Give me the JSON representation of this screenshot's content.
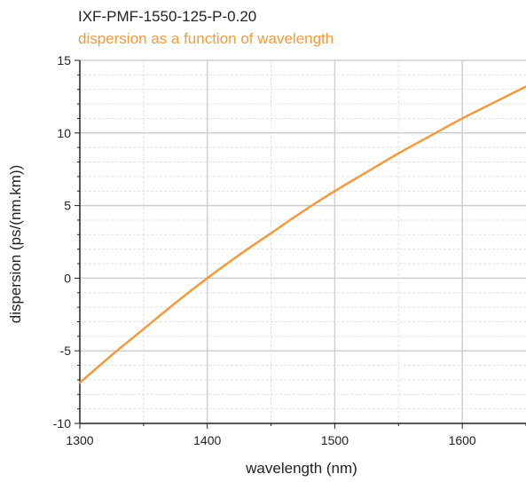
{
  "chart_data": {
    "type": "line",
    "title": "IXF-PMF-1550-125-P-0.20",
    "subtitle": "dispersion as a function of wavelength",
    "xlabel": "wavelength (nm)",
    "ylabel": "dispersion (ps/(nm.km))",
    "xlim": [
      1300,
      1650
    ],
    "ylim": [
      -10,
      15
    ],
    "x_ticks": [
      1300,
      1400,
      1500,
      1600
    ],
    "x_tick_labels": [
      "1300",
      "1400",
      "1500",
      "1600"
    ],
    "y_ticks": [
      -10,
      -5,
      0,
      5,
      10,
      15
    ],
    "y_tick_labels": [
      "-10",
      "-5",
      "0",
      "5",
      "10",
      "15"
    ],
    "grid": true,
    "colors": {
      "line": "#f39a3c",
      "subtitle": "#f39a3c",
      "major_grid": "#cfcfcf",
      "minor_grid": "#e2e2e2",
      "axis": "#222222"
    },
    "series": [
      {
        "x": [
          1300,
          1325,
          1350,
          1375,
          1400,
          1425,
          1450,
          1475,
          1500,
          1525,
          1550,
          1575,
          1600,
          1625,
          1650
        ],
        "values": [
          -7.2,
          -5.3,
          -3.5,
          -1.7,
          0.0,
          1.6,
          3.1,
          4.6,
          6.0,
          7.3,
          8.6,
          9.8,
          11.0,
          12.1,
          13.2
        ]
      }
    ]
  }
}
